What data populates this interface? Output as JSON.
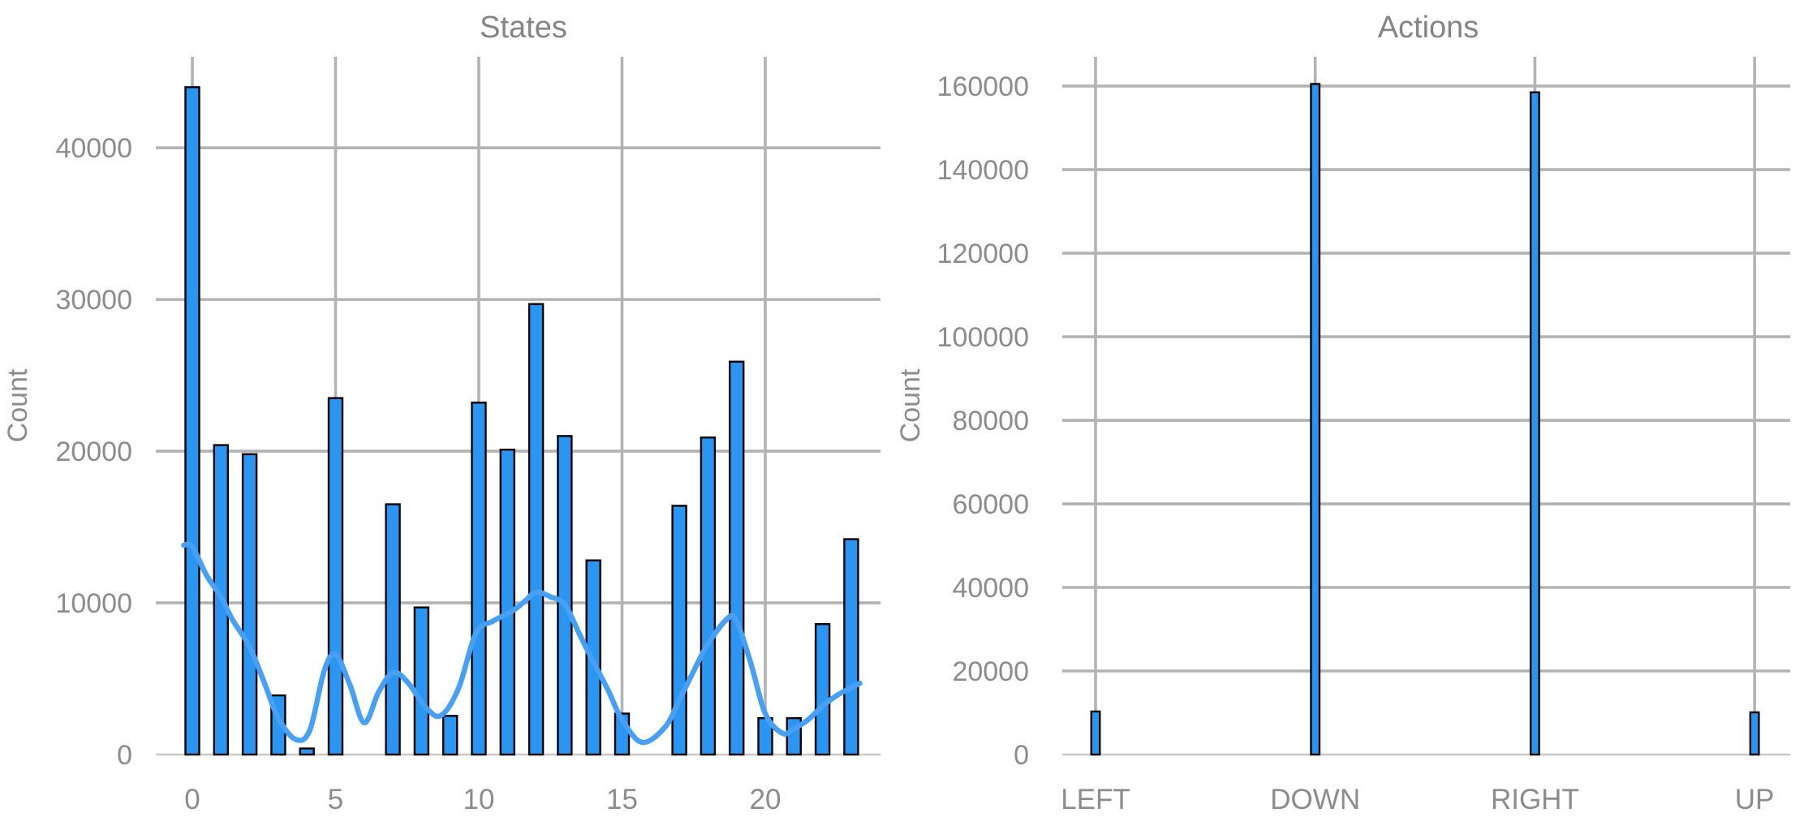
{
  "figure": {
    "background": "#ffffff"
  },
  "style": {
    "bar_fill": "#2B95F2",
    "bar_edge": "#000000",
    "kde_line_color": "#47A0F5",
    "grid_color": "#B3B3B3",
    "axis_line_color": "#C9C9C9",
    "text_color": "#8C8C8C",
    "title_color": "#858585"
  },
  "chart_data": [
    {
      "type": "bar",
      "title": "States",
      "xlabel": "",
      "ylabel": "Count",
      "categories": [
        0,
        1,
        2,
        3,
        4,
        5,
        6,
        7,
        8,
        9,
        10,
        11,
        12,
        13,
        14,
        15,
        16,
        17,
        18,
        19,
        20,
        21,
        22,
        23
      ],
      "values": [
        44000,
        20400,
        19800,
        3900,
        400,
        23500,
        0,
        16500,
        9700,
        2550,
        23200,
        20100,
        29700,
        21000,
        12800,
        2700,
        0,
        16400,
        20900,
        25900,
        2400,
        2400,
        8600,
        14200
      ],
      "x_ticks": [
        0,
        5,
        10,
        15,
        20
      ],
      "y_ticks": [
        0,
        10000,
        20000,
        30000,
        40000
      ],
      "xlim": [
        -0.91,
        24.02
      ],
      "ylim": [
        0,
        46000
      ],
      "grid": true,
      "legend": "none",
      "kde_line": {
        "x": [
          -0.3,
          0,
          0.5,
          1,
          1.4,
          2,
          2.5,
          3,
          3.6,
          4.1,
          4.6,
          5,
          5.5,
          6,
          6.5,
          7,
          7.5,
          8.2,
          8.7,
          9.3,
          9.9,
          10.5,
          11.2,
          11.6,
          12,
          12.5,
          13,
          13.5,
          14,
          14.5,
          15,
          15.7,
          16.5,
          17,
          17.5,
          18,
          18.7,
          19,
          19.5,
          20,
          20.6,
          21,
          21.5,
          22,
          22.5,
          23,
          23.3
        ],
        "y": [
          13800,
          13700,
          11800,
          10400,
          8900,
          7100,
          4800,
          2400,
          1000,
          1600,
          5500,
          6600,
          4600,
          2100,
          4100,
          5400,
          4800,
          3000,
          2600,
          4400,
          8000,
          8800,
          9500,
          10100,
          10700,
          10400,
          9900,
          8000,
          6100,
          4300,
          2300,
          800,
          1800,
          3600,
          5500,
          7300,
          9000,
          8800,
          6000,
          2700,
          1400,
          1700,
          2300,
          3200,
          3900,
          4400,
          4700
        ]
      }
    },
    {
      "type": "bar",
      "title": "Actions",
      "xlabel": "",
      "ylabel": "Count",
      "categories": [
        "LEFT",
        "DOWN",
        "RIGHT",
        "UP"
      ],
      "values": [
        10300,
        160500,
        158500,
        10100
      ],
      "y_ticks": [
        0,
        20000,
        40000,
        60000,
        80000,
        100000,
        120000,
        140000,
        160000
      ],
      "ylim": [
        0,
        167000
      ],
      "grid": true,
      "legend": "none"
    }
  ]
}
